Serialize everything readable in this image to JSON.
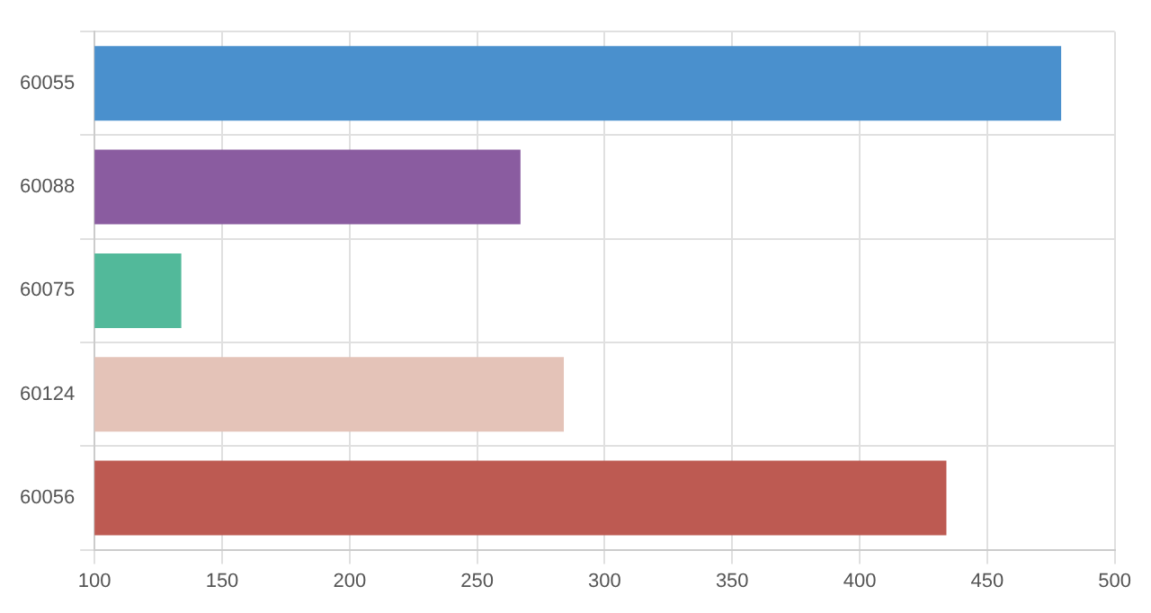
{
  "chart_data": {
    "type": "bar",
    "orientation": "horizontal",
    "categories": [
      "60055",
      "60088",
      "60075",
      "60124",
      "60056"
    ],
    "values": [
      479,
      267,
      134,
      284,
      434
    ],
    "colors": [
      "#4a90cd",
      "#8a5ca0",
      "#52b99a",
      "#e4c3b8",
      "#bd5a52"
    ],
    "xlim": [
      100,
      500
    ],
    "xticks": [
      100,
      150,
      200,
      250,
      300,
      350,
      400,
      450,
      500
    ],
    "grid": true,
    "legend": false
  }
}
